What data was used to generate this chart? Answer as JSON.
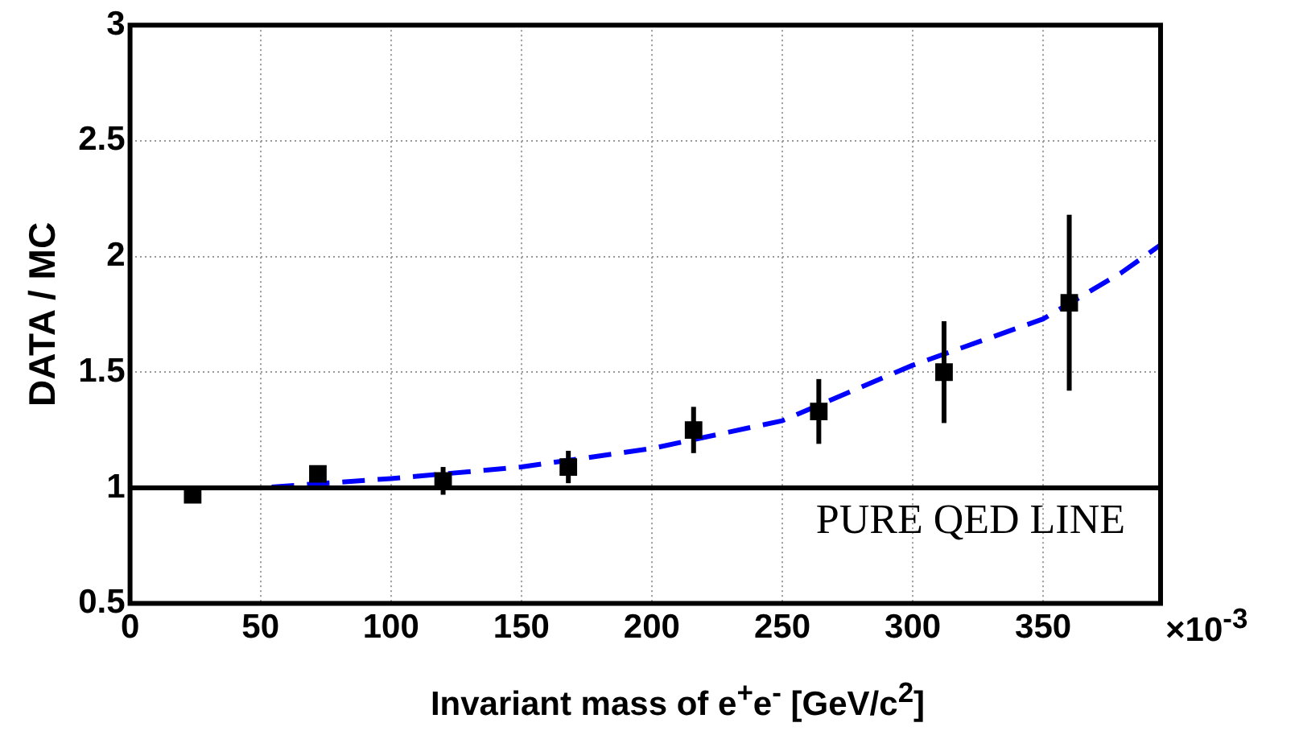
{
  "chart_data": {
    "type": "scatter",
    "ylabel": "DATA / MC",
    "xlabel": "Invariant mass of e$^{+}$e$^{-}$ [GeV/c$^{2}$]",
    "annotations": [
      "×10$^{-3}$"
    ],
    "xlim": [
      0,
      395
    ],
    "xticks": [
      0,
      50,
      100,
      150,
      200,
      250,
      300,
      350
    ],
    "ylim": [
      0.5,
      3
    ],
    "yticks": [
      0.5,
      1,
      1.5,
      2,
      2.5,
      3
    ],
    "grid": true,
    "ref_lines": [
      {
        "axis": "y",
        "value": 1,
        "label": "PURE QED LINE",
        "color": "#000000"
      }
    ],
    "series": [
      {
        "type": "scatter",
        "color": "#000000",
        "marker": "square",
        "x": [
          24,
          72,
          120,
          168,
          216,
          264,
          312,
          360
        ],
        "values": [
          0.97,
          1.06,
          1.03,
          1.09,
          1.25,
          1.33,
          1.5,
          1.8
        ],
        "errors": [
          0.02,
          0.03,
          0.06,
          0.07,
          0.1,
          0.14,
          0.22,
          0.38
        ]
      },
      {
        "type": "line",
        "color": "#0000ff",
        "marker": "none",
        "line_style": "dashed",
        "x": [
          0,
          50,
          100,
          150,
          200,
          250,
          300,
          350,
          380,
          395
        ],
        "values": [
          1,
          1,
          1.04,
          1.09,
          1.17,
          1.29,
          1.53,
          1.73,
          1.93,
          2.05
        ]
      }
    ]
  }
}
